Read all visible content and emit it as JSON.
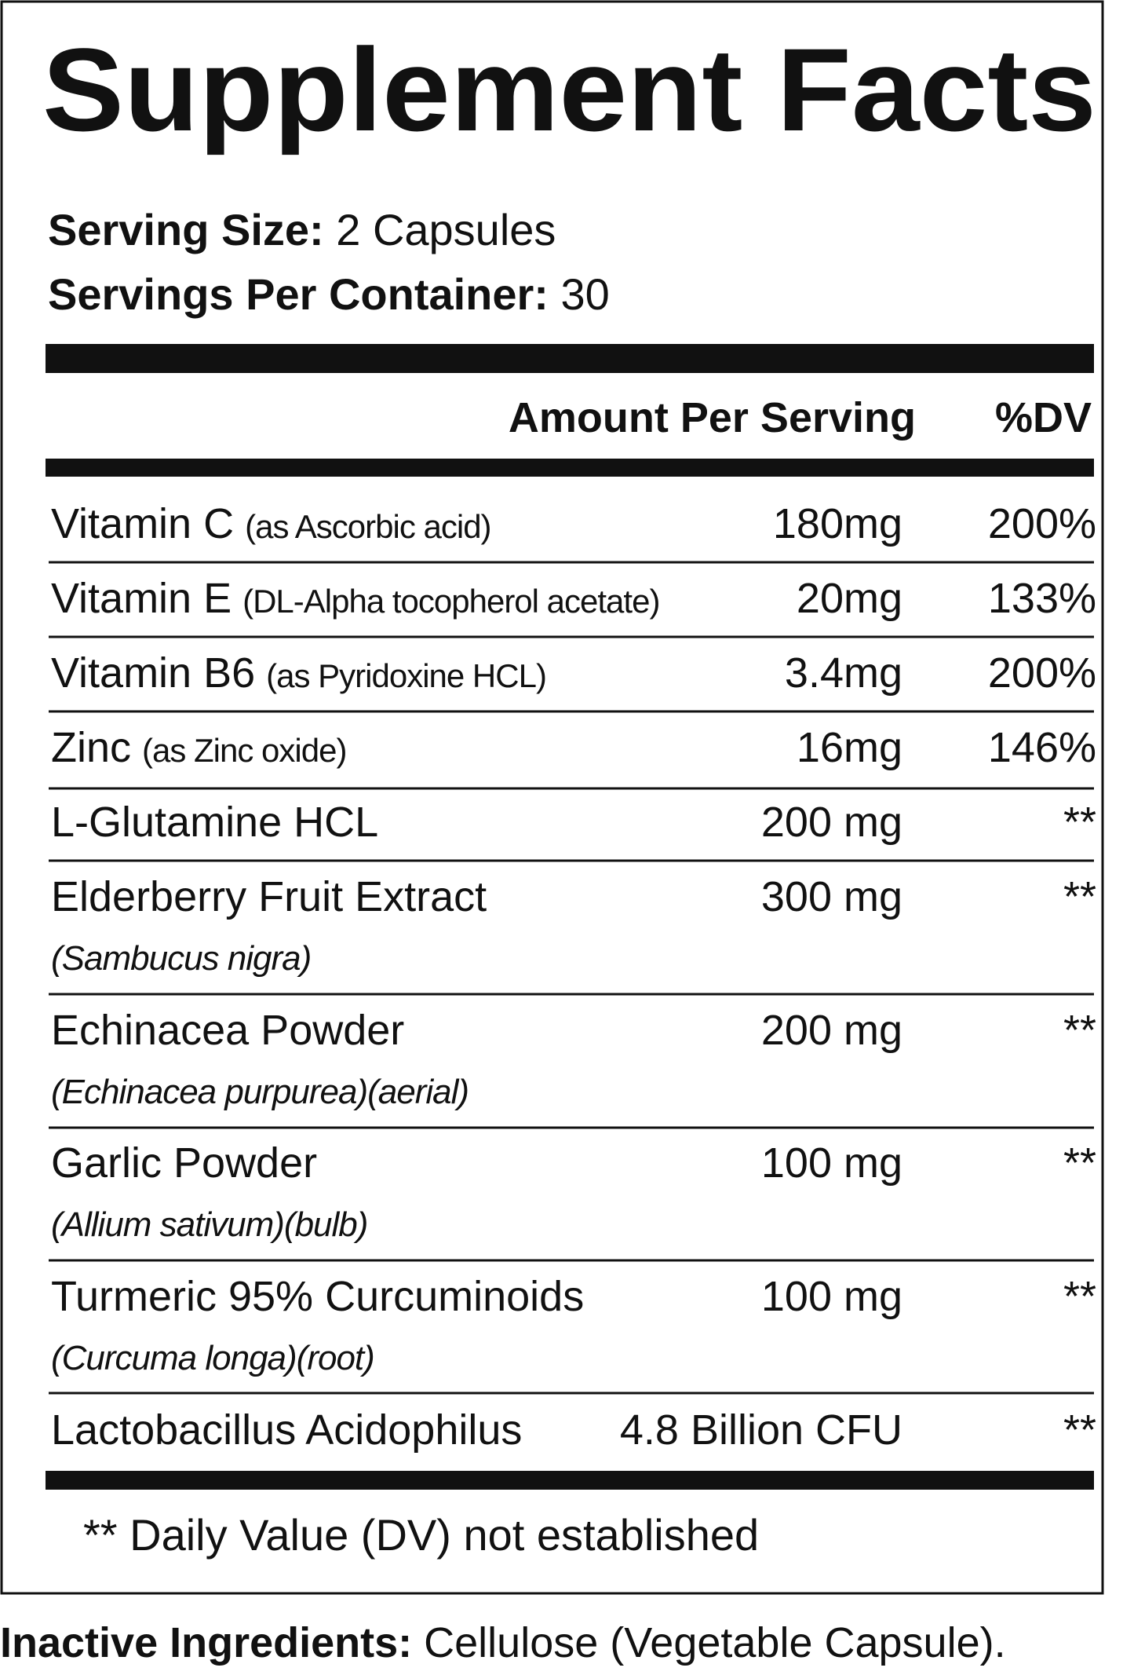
{
  "header": {
    "title": "Supplement Facts",
    "serving_size": {
      "label": "Serving Size:",
      "value": "2 Capsules"
    },
    "servings_per_container": {
      "label": "Servings Per Container:",
      "value": "30"
    }
  },
  "table": {
    "columns": [
      "Amount Per Serving",
      "%DV"
    ],
    "rows": [
      {
        "name": "Vitamin C",
        "note": "(as Ascorbic acid)",
        "amount": "180mg",
        "dv": "200%"
      },
      {
        "name": "Vitamin E",
        "note": "(DL-Alpha tocopherol acetate)",
        "amount": "20mg",
        "dv": "133%"
      },
      {
        "name": "Vitamin B6",
        "note": "(as Pyridoxine HCL)",
        "amount": "3.4mg",
        "dv": "200%"
      },
      {
        "name": "Zinc",
        "note": "(as Zinc oxide)",
        "amount": "16mg",
        "dv": "146%"
      },
      {
        "name": "L-Glutamine HCL",
        "amount": "200 mg",
        "dv": "**"
      },
      {
        "name": "Elderberry Fruit Extract",
        "latin": "(Sambucus nigra)",
        "amount": "300 mg",
        "dv": "**"
      },
      {
        "name": "Echinacea Powder",
        "latin": "(Echinacea purpurea)(aerial)",
        "amount": "200 mg",
        "dv": "**"
      },
      {
        "name": "Garlic Powder",
        "latin": "(Allium sativum)(bulb)",
        "amount": "100 mg",
        "dv": "**"
      },
      {
        "name": "Turmeric 95% Curcuminoids",
        "latin": "(Curcuma longa)(root)",
        "amount": "100 mg",
        "dv": "**"
      },
      {
        "name": "Lactobacillus Acidophilus",
        "amount": "4.8 Billion CFU",
        "dv": "**"
      }
    ]
  },
  "footnote": "** Daily Value (DV) not established",
  "inactive": {
    "label": "Inactive Ingredients:",
    "value": "Cellulose (Vegetable Capsule)."
  }
}
